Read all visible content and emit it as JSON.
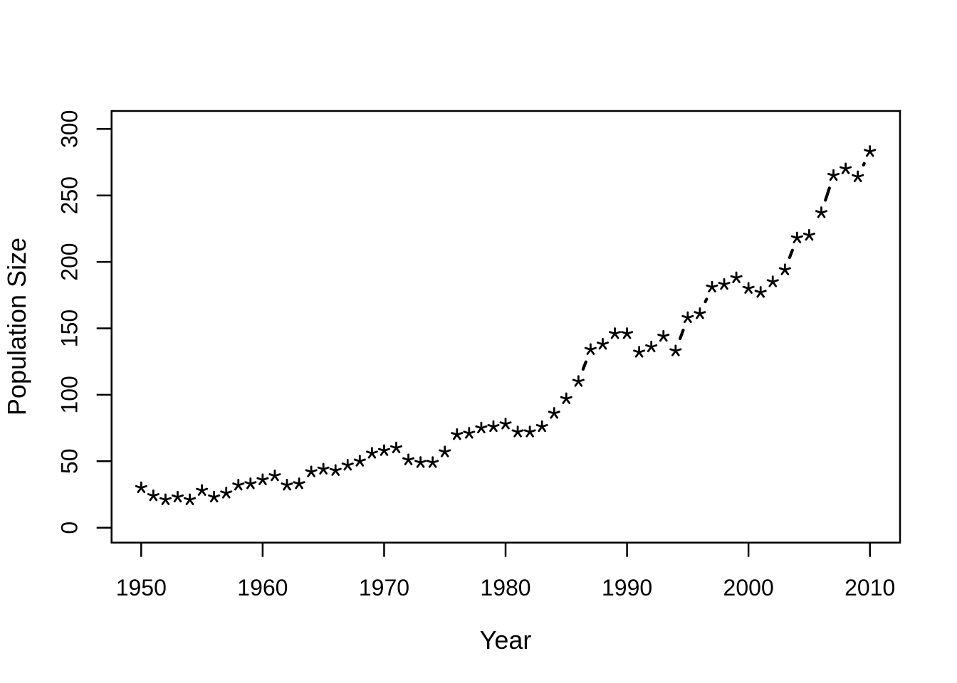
{
  "figure": {
    "background": "#ffffff",
    "foreground": "#000000",
    "marker_glyph": "asterisk",
    "xlabel": "Year",
    "ylabel": "Population Size"
  },
  "chart_data": {
    "type": "line",
    "subtype": "R-base-type-b-points-with-broken-line",
    "marker": "*",
    "title": "",
    "xlabel": "Year",
    "ylabel": "Population Size",
    "xlim": [
      1950,
      2010
    ],
    "ylim": [
      0,
      300
    ],
    "x_ticks": [
      1950,
      1960,
      1970,
      1980,
      1990,
      2000,
      2010
    ],
    "y_ticks": [
      0,
      50,
      100,
      150,
      200,
      250,
      300
    ],
    "grid": false,
    "legend": "none",
    "x": [
      1950,
      1951,
      1952,
      1953,
      1954,
      1955,
      1956,
      1957,
      1958,
      1959,
      1960,
      1961,
      1962,
      1963,
      1964,
      1965,
      1966,
      1967,
      1968,
      1969,
      1970,
      1971,
      1972,
      1973,
      1974,
      1975,
      1976,
      1977,
      1978,
      1979,
      1980,
      1981,
      1982,
      1983,
      1984,
      1985,
      1986,
      1987,
      1988,
      1989,
      1990,
      1991,
      1992,
      1993,
      1994,
      1995,
      1996,
      1997,
      1998,
      1999,
      2000,
      2001,
      2002,
      2003,
      2004,
      2005,
      2006,
      2007,
      2008,
      2009,
      2010
    ],
    "values": [
      30,
      24,
      21,
      23,
      21,
      28,
      23,
      26,
      32,
      33,
      36,
      39,
      32,
      33,
      42,
      44,
      43,
      47,
      50,
      56,
      58,
      60,
      51,
      49,
      49,
      57,
      70,
      71,
      75,
      76,
      78,
      72,
      72,
      76,
      86,
      97,
      110,
      134,
      138,
      146,
      146,
      132,
      136,
      144,
      133,
      158,
      161,
      181,
      183,
      188,
      180,
      177,
      185,
      194,
      218,
      220,
      237,
      265,
      270,
      264,
      283
    ]
  }
}
